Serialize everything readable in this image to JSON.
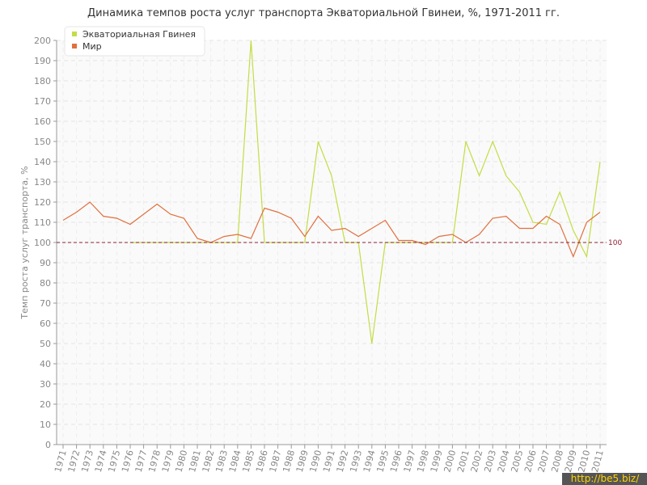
{
  "chart_data": {
    "type": "line",
    "title": "Динамика темпов роста услуг транспорта Экваториальной Гвинеи, %, 1971-2011 гг.",
    "y_label": "Темп роста услуг транспорта, %",
    "watermark": "http://be5.biz/",
    "categories": [
      "1971",
      "1972",
      "1973",
      "1974",
      "1975",
      "1976",
      "1977",
      "1978",
      "1979",
      "1980",
      "1981",
      "1982",
      "1983",
      "1984",
      "1985",
      "1986",
      "1987",
      "1988",
      "1989",
      "1990",
      "1991",
      "1992",
      "1993",
      "1994",
      "1995",
      "1996",
      "1997",
      "1998",
      "1999",
      "2000",
      "2001",
      "2002",
      "2003",
      "2004",
      "2005",
      "2006",
      "2007",
      "2008",
      "2009",
      "2010",
      "2011"
    ],
    "series": [
      {
        "name": "Экваториальная Гвинея",
        "color": "#c3dd45",
        "values": [
          null,
          null,
          null,
          null,
          null,
          100,
          100,
          100,
          100,
          100,
          100,
          100,
          100,
          100,
          200,
          100,
          100,
          100,
          100,
          150,
          133,
          100,
          100,
          50,
          100,
          100,
          100,
          100,
          100,
          100,
          150,
          133,
          150,
          133,
          125,
          110,
          109,
          125,
          106,
          93,
          140
        ]
      },
      {
        "name": "Мир",
        "color": "#e0703f",
        "values": [
          111,
          115,
          120,
          113,
          112,
          109,
          114,
          119,
          114,
          112,
          102,
          100,
          103,
          104,
          102,
          117,
          115,
          112,
          103,
          113,
          106,
          107,
          103,
          107,
          111,
          101,
          101,
          99,
          103,
          104,
          100,
          104,
          112,
          113,
          107,
          107,
          113,
          109,
          93,
          110,
          115
        ]
      }
    ],
    "ylim": [
      0,
      200
    ],
    "yticks": [
      0,
      10,
      20,
      30,
      40,
      50,
      60,
      70,
      80,
      90,
      100,
      110,
      120,
      130,
      140,
      150,
      160,
      170,
      180,
      190,
      200
    ],
    "reference_line": {
      "value": 100,
      "label": 100,
      "color": "#8b2035"
    },
    "grid": true,
    "legend": "top-left"
  }
}
